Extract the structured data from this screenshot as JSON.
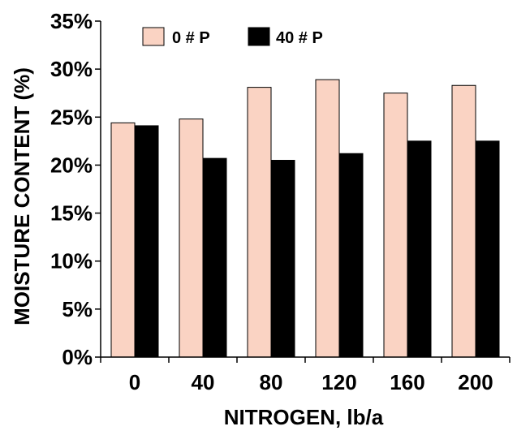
{
  "chart_data": {
    "type": "bar",
    "title": "",
    "xlabel": "NITROGEN, lb/a",
    "ylabel": "MOISTURE CONTENT (%)",
    "categories": [
      "0",
      "40",
      "80",
      "120",
      "160",
      "200"
    ],
    "series": [
      {
        "name": "0 # P",
        "values": [
          24.4,
          24.8,
          28.1,
          28.9,
          27.5,
          28.3
        ],
        "color": "#FAD3C3"
      },
      {
        "name": "40 # P",
        "values": [
          24.1,
          20.7,
          20.5,
          21.2,
          22.5,
          22.5
        ],
        "color": "#000000"
      }
    ],
    "ylim": [
      0,
      35
    ],
    "y_ticks": [
      "0%",
      "5%",
      "10%",
      "15%",
      "20%",
      "25%",
      "30%",
      "35%"
    ],
    "y_tick_values": [
      0,
      5,
      10,
      15,
      20,
      25,
      30,
      35
    ],
    "legend_position": "top-left",
    "grid": false,
    "bar_outline_color": "#000000",
    "axis_color": "#000000"
  }
}
